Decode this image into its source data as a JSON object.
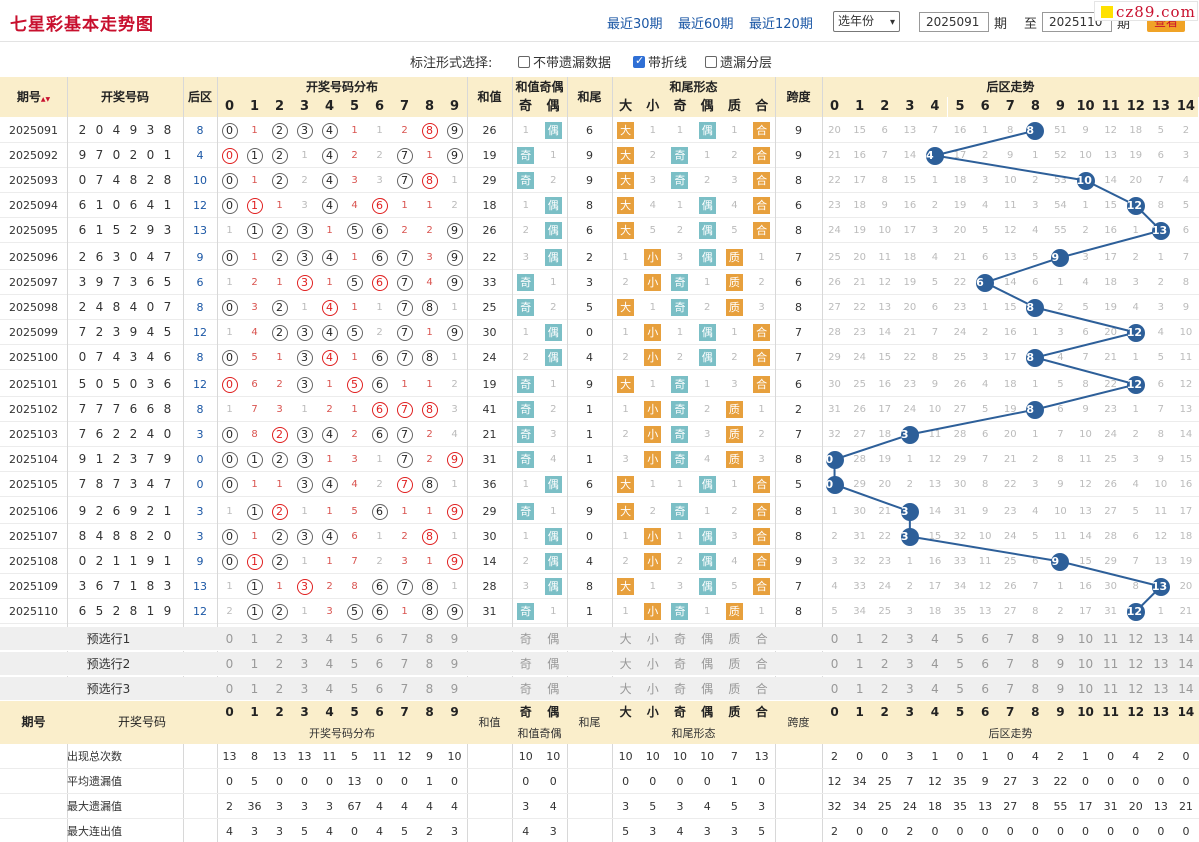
{
  "header": {
    "title": "七星彩基本走势图",
    "links": [
      "最近30期",
      "最近60期",
      "最近120期"
    ],
    "year_select": "选年份",
    "from_period": "2025091",
    "from_label": "期",
    "to_label": "至",
    "to_period": "2025110",
    "to_suffix": "期",
    "query": "查看",
    "watermark": "cz89.com"
  },
  "marker_options": {
    "label": "标注形式选择:",
    "options": [
      {
        "label": "不带遗漏数据",
        "checked": false
      },
      {
        "label": "带折线",
        "checked": true
      },
      {
        "label": "遗漏分层",
        "checked": false
      }
    ]
  },
  "columns": {
    "period": "期号",
    "draw": "开奖号码",
    "back": "后区",
    "dist": "开奖号码分布",
    "sum": "和值",
    "sum_parity": "和值奇偶",
    "odd": "奇",
    "even": "偶",
    "tail": "和尾",
    "tail_shape": "和尾形态",
    "big": "大",
    "small": "小",
    "prime": "质",
    "composite": "合",
    "span": "跨度",
    "back_trend": "后区走势",
    "sort_icon": "sort-icon"
  },
  "digits": [
    "0",
    "1",
    "2",
    "3",
    "4",
    "5",
    "6",
    "7",
    "8",
    "9"
  ],
  "back_digits": [
    "0",
    "1",
    "2",
    "3",
    "4",
    "5",
    "6",
    "7",
    "8",
    "9",
    "10",
    "11",
    "12",
    "13",
    "14"
  ],
  "rows": [
    {
      "p": "2025091",
      "d": [
        "2",
        "0",
        "4",
        "9",
        "3",
        "8"
      ],
      "b": "8",
      "dist": [
        "B0",
        "1",
        "B2",
        "B3",
        "B4",
        "1",
        "1",
        "2",
        "H8",
        "B9"
      ],
      "sum": "26",
      "par": [
        "1",
        "偶"
      ],
      "tail": "6",
      "shape": [
        "大",
        "1",
        "1",
        "偶",
        "1",
        "合"
      ],
      "span": "9",
      "trend": [
        "20",
        "15",
        "6",
        "13",
        "7",
        "16",
        "1",
        "8",
        "8",
        "51",
        "9",
        "12",
        "18",
        "5",
        "2"
      ]
    },
    {
      "p": "2025092",
      "d": [
        "9",
        "7",
        "0",
        "2",
        "0",
        "1"
      ],
      "b": "4",
      "dist": [
        "H0",
        "B1",
        "B2",
        "1",
        "B4",
        "2",
        "2",
        "B7",
        "1",
        "B9"
      ],
      "sum": "19",
      "par": [
        "奇",
        "1"
      ],
      "tail": "9",
      "shape": [
        "大",
        "2",
        "奇",
        "1",
        "2",
        "合"
      ],
      "span": "9",
      "trend": [
        "21",
        "16",
        "7",
        "14",
        "4",
        "17",
        "2",
        "9",
        "1",
        "52",
        "10",
        "13",
        "19",
        "6",
        "3"
      ]
    },
    {
      "p": "2025093",
      "d": [
        "0",
        "7",
        "4",
        "8",
        "2",
        "8"
      ],
      "b": "10",
      "dist": [
        "B0",
        "1",
        "B2",
        "2",
        "B4",
        "3",
        "3",
        "B7",
        "H8",
        "1"
      ],
      "sum": "29",
      "par": [
        "奇",
        "2"
      ],
      "tail": "9",
      "shape": [
        "大",
        "3",
        "奇",
        "2",
        "3",
        "合"
      ],
      "span": "8",
      "trend": [
        "22",
        "17",
        "8",
        "15",
        "1",
        "18",
        "3",
        "10",
        "2",
        "53",
        "10",
        "14",
        "20",
        "7",
        "4"
      ]
    },
    {
      "p": "2025094",
      "d": [
        "6",
        "1",
        "0",
        "6",
        "4",
        "1"
      ],
      "b": "12",
      "dist": [
        "B0",
        "H1",
        "1",
        "3",
        "B4",
        "4",
        "H6",
        "1",
        "1",
        "2"
      ],
      "sum": "18",
      "par": [
        "1",
        "偶"
      ],
      "tail": "8",
      "shape": [
        "大",
        "4",
        "1",
        "偶",
        "4",
        "合"
      ],
      "span": "6",
      "trend": [
        "23",
        "18",
        "9",
        "16",
        "2",
        "19",
        "4",
        "11",
        "3",
        "54",
        "1",
        "15",
        "12",
        "8",
        "5"
      ]
    },
    {
      "p": "2025095",
      "d": [
        "6",
        "1",
        "5",
        "2",
        "9",
        "3"
      ],
      "b": "13",
      "dist": [
        "1",
        "B1",
        "B2",
        "B3",
        "1",
        "B5",
        "B6",
        "2",
        "2",
        "B9"
      ],
      "sum": "26",
      "par": [
        "2",
        "偶"
      ],
      "tail": "6",
      "shape": [
        "大",
        "5",
        "2",
        "偶",
        "5",
        "合"
      ],
      "span": "8",
      "trend": [
        "24",
        "19",
        "10",
        "17",
        "3",
        "20",
        "5",
        "12",
        "4",
        "55",
        "2",
        "16",
        "1",
        "13",
        "6"
      ]
    },
    {
      "p": "2025096",
      "d": [
        "2",
        "6",
        "3",
        "0",
        "4",
        "7"
      ],
      "b": "9",
      "dist": [
        "B0",
        "1",
        "B2",
        "B3",
        "B4",
        "1",
        "B6",
        "B7",
        "3",
        "B9"
      ],
      "sum": "22",
      "par": [
        "3",
        "偶"
      ],
      "tail": "2",
      "shape": [
        "1",
        "小",
        "3",
        "偶",
        "质",
        "1"
      ],
      "span": "7",
      "trend": [
        "25",
        "20",
        "11",
        "18",
        "4",
        "21",
        "6",
        "13",
        "5",
        "9",
        "3",
        "17",
        "2",
        "1",
        "7"
      ]
    },
    {
      "p": "2025097",
      "d": [
        "3",
        "9",
        "7",
        "3",
        "6",
        "5"
      ],
      "b": "6",
      "dist": [
        "1",
        "2",
        "1",
        "H3",
        "1",
        "B5",
        "H6",
        "B7",
        "4",
        "B9"
      ],
      "sum": "33",
      "par": [
        "奇",
        "1"
      ],
      "tail": "3",
      "shape": [
        "2",
        "小",
        "奇",
        "1",
        "质",
        "2"
      ],
      "span": "6",
      "trend": [
        "26",
        "21",
        "12",
        "19",
        "5",
        "22",
        "6",
        "14",
        "6",
        "1",
        "4",
        "18",
        "3",
        "2",
        "8"
      ]
    },
    {
      "p": "2025098",
      "d": [
        "2",
        "4",
        "8",
        "4",
        "0",
        "7"
      ],
      "b": "8",
      "dist": [
        "B0",
        "3",
        "B2",
        "1",
        "H4",
        "1",
        "1",
        "B7",
        "B8",
        "1"
      ],
      "sum": "25",
      "par": [
        "奇",
        "2"
      ],
      "tail": "5",
      "shape": [
        "大",
        "1",
        "奇",
        "2",
        "质",
        "3"
      ],
      "span": "8",
      "trend": [
        "27",
        "22",
        "13",
        "20",
        "6",
        "23",
        "1",
        "15",
        "8",
        "2",
        "5",
        "19",
        "4",
        "3",
        "9"
      ]
    },
    {
      "p": "2025099",
      "d": [
        "7",
        "2",
        "3",
        "9",
        "4",
        "5"
      ],
      "b": "12",
      "dist": [
        "1",
        "4",
        "B2",
        "B3",
        "B4",
        "B5",
        "2",
        "B7",
        "1",
        "B9"
      ],
      "sum": "30",
      "par": [
        "1",
        "偶"
      ],
      "tail": "0",
      "shape": [
        "1",
        "小",
        "1",
        "偶",
        "1",
        "合"
      ],
      "span": "7",
      "trend": [
        "28",
        "23",
        "14",
        "21",
        "7",
        "24",
        "2",
        "16",
        "1",
        "3",
        "6",
        "20",
        "12",
        "4",
        "10"
      ]
    },
    {
      "p": "2025100",
      "d": [
        "0",
        "7",
        "4",
        "3",
        "4",
        "6"
      ],
      "b": "8",
      "dist": [
        "B0",
        "5",
        "1",
        "B3",
        "H4",
        "1",
        "B6",
        "B7",
        "B8",
        "1"
      ],
      "sum": "24",
      "par": [
        "2",
        "偶"
      ],
      "tail": "4",
      "shape": [
        "2",
        "小",
        "2",
        "偶",
        "2",
        "合"
      ],
      "span": "7",
      "trend": [
        "29",
        "24",
        "15",
        "22",
        "8",
        "25",
        "3",
        "17",
        "8",
        "4",
        "7",
        "21",
        "1",
        "5",
        "11"
      ]
    },
    {
      "p": "2025101",
      "d": [
        "5",
        "0",
        "5",
        "0",
        "3",
        "6"
      ],
      "b": "12",
      "dist": [
        "H0",
        "6",
        "2",
        "B3",
        "1",
        "H5",
        "B6",
        "1",
        "1",
        "2"
      ],
      "sum": "19",
      "par": [
        "奇",
        "1"
      ],
      "tail": "9",
      "shape": [
        "大",
        "1",
        "奇",
        "1",
        "3",
        "合"
      ],
      "span": "6",
      "trend": [
        "30",
        "25",
        "16",
        "23",
        "9",
        "26",
        "4",
        "18",
        "1",
        "5",
        "8",
        "22",
        "12",
        "6",
        "12"
      ]
    },
    {
      "p": "2025102",
      "d": [
        "7",
        "7",
        "7",
        "6",
        "6",
        "8"
      ],
      "b": "8",
      "dist": [
        "1",
        "7",
        "3",
        "1",
        "2",
        "1",
        "H6",
        "H7",
        "H8",
        "3"
      ],
      "sum": "41",
      "par": [
        "奇",
        "2"
      ],
      "tail": "1",
      "shape": [
        "1",
        "小",
        "奇",
        "2",
        "质",
        "1"
      ],
      "span": "2",
      "trend": [
        "31",
        "26",
        "17",
        "24",
        "10",
        "27",
        "5",
        "19",
        "8",
        "6",
        "9",
        "23",
        "1",
        "7",
        "13"
      ]
    },
    {
      "p": "2025103",
      "d": [
        "7",
        "6",
        "2",
        "2",
        "4",
        "0"
      ],
      "b": "3",
      "dist": [
        "B0",
        "8",
        "H2",
        "B3",
        "B4",
        "2",
        "B6",
        "B7",
        "2",
        "4"
      ],
      "sum": "21",
      "par": [
        "奇",
        "3"
      ],
      "tail": "1",
      "shape": [
        "2",
        "小",
        "奇",
        "3",
        "质",
        "2"
      ],
      "span": "7",
      "trend": [
        "32",
        "27",
        "18",
        "3",
        "11",
        "28",
        "6",
        "20",
        "1",
        "7",
        "10",
        "24",
        "2",
        "8",
        "14"
      ]
    },
    {
      "p": "2025104",
      "d": [
        "9",
        "1",
        "2",
        "3",
        "7",
        "9"
      ],
      "b": "0",
      "dist": [
        "B0",
        "B1",
        "B2",
        "B3",
        "1",
        "3",
        "1",
        "B7",
        "2",
        "H9"
      ],
      "sum": "31",
      "par": [
        "奇",
        "4"
      ],
      "tail": "1",
      "shape": [
        "3",
        "小",
        "奇",
        "4",
        "质",
        "3"
      ],
      "span": "8",
      "trend": [
        "0",
        "28",
        "19",
        "1",
        "12",
        "29",
        "7",
        "21",
        "2",
        "8",
        "11",
        "25",
        "3",
        "9",
        "15"
      ]
    },
    {
      "p": "2025105",
      "d": [
        "7",
        "8",
        "7",
        "3",
        "4",
        "7"
      ],
      "b": "0",
      "dist": [
        "B0",
        "1",
        "1",
        "B3",
        "B4",
        "4",
        "2",
        "H7",
        "B8",
        "1"
      ],
      "sum": "36",
      "par": [
        "1",
        "偶"
      ],
      "tail": "6",
      "shape": [
        "大",
        "1",
        "1",
        "偶",
        "1",
        "合"
      ],
      "span": "5",
      "trend": [
        "0",
        "29",
        "20",
        "2",
        "13",
        "30",
        "8",
        "22",
        "3",
        "9",
        "12",
        "26",
        "4",
        "10",
        "16"
      ]
    },
    {
      "p": "2025106",
      "d": [
        "9",
        "2",
        "6",
        "9",
        "2",
        "1"
      ],
      "b": "3",
      "dist": [
        "1",
        "B1",
        "H2",
        "1",
        "1",
        "5",
        "B6",
        "1",
        "1",
        "H9"
      ],
      "sum": "29",
      "par": [
        "奇",
        "1"
      ],
      "tail": "9",
      "shape": [
        "大",
        "2",
        "奇",
        "1",
        "2",
        "合"
      ],
      "span": "8",
      "trend": [
        "1",
        "30",
        "21",
        "3",
        "14",
        "31",
        "9",
        "23",
        "4",
        "10",
        "13",
        "27",
        "5",
        "11",
        "17"
      ]
    },
    {
      "p": "2025107",
      "d": [
        "8",
        "4",
        "8",
        "8",
        "2",
        "0"
      ],
      "b": "3",
      "dist": [
        "B0",
        "1",
        "B2",
        "B3",
        "B4",
        "6",
        "1",
        "2",
        "H8",
        "1"
      ],
      "sum": "30",
      "par": [
        "1",
        "偶"
      ],
      "tail": "0",
      "shape": [
        "1",
        "小",
        "1",
        "偶",
        "3",
        "合"
      ],
      "span": "8",
      "trend": [
        "2",
        "31",
        "22",
        "3",
        "15",
        "32",
        "10",
        "24",
        "5",
        "11",
        "14",
        "28",
        "6",
        "12",
        "18"
      ]
    },
    {
      "p": "2025108",
      "d": [
        "0",
        "2",
        "1",
        "1",
        "9",
        "1"
      ],
      "b": "9",
      "dist": [
        "B0",
        "H1",
        "B2",
        "1",
        "1",
        "7",
        "2",
        "3",
        "1",
        "H9"
      ],
      "sum": "14",
      "par": [
        "2",
        "偶"
      ],
      "tail": "4",
      "shape": [
        "2",
        "小",
        "2",
        "偶",
        "4",
        "合"
      ],
      "span": "9",
      "trend": [
        "3",
        "32",
        "23",
        "1",
        "16",
        "33",
        "11",
        "25",
        "6",
        "9",
        "15",
        "29",
        "7",
        "13",
        "19"
      ]
    },
    {
      "p": "2025109",
      "d": [
        "3",
        "6",
        "7",
        "1",
        "8",
        "3"
      ],
      "b": "13",
      "dist": [
        "1",
        "B1",
        "1",
        "H3",
        "2",
        "8",
        "B6",
        "B7",
        "B8",
        "1"
      ],
      "sum": "28",
      "par": [
        "3",
        "偶"
      ],
      "tail": "8",
      "shape": [
        "大",
        "1",
        "3",
        "偶",
        "5",
        "合"
      ],
      "span": "7",
      "trend": [
        "4",
        "33",
        "24",
        "2",
        "17",
        "34",
        "12",
        "26",
        "7",
        "1",
        "16",
        "30",
        "8",
        "13",
        "20"
      ]
    },
    {
      "p": "2025110",
      "d": [
        "6",
        "5",
        "2",
        "8",
        "1",
        "9"
      ],
      "b": "12",
      "dist": [
        "2",
        "B1",
        "B2",
        "1",
        "3",
        "B5",
        "B6",
        "1",
        "B8",
        "B9"
      ],
      "sum": "31",
      "par": [
        "奇",
        "1"
      ],
      "tail": "1",
      "shape": [
        "1",
        "小",
        "奇",
        "1",
        "质",
        "1"
      ],
      "span": "8",
      "trend": [
        "5",
        "34",
        "25",
        "3",
        "18",
        "35",
        "13",
        "27",
        "8",
        "2",
        "17",
        "31",
        "12",
        "1",
        "21"
      ]
    }
  ],
  "preselect": [
    "预选行1",
    "预选行2",
    "预选行3"
  ],
  "stats": [
    {
      "label": "出现总次数",
      "dist": [
        "13",
        "8",
        "13",
        "13",
        "11",
        "5",
        "11",
        "12",
        "9",
        "10"
      ],
      "par": [
        "10",
        "10"
      ],
      "shape": [
        "10",
        "10",
        "10",
        "10",
        "7",
        "13"
      ],
      "back": [
        "2",
        "0",
        "0",
        "3",
        "1",
        "0",
        "1",
        "0",
        "4",
        "2",
        "1",
        "0",
        "4",
        "2",
        "0"
      ]
    },
    {
      "label": "平均遗漏值",
      "dist": [
        "0",
        "5",
        "0",
        "0",
        "0",
        "13",
        "0",
        "0",
        "1",
        "0"
      ],
      "par": [
        "0",
        "0"
      ],
      "shape": [
        "0",
        "0",
        "0",
        "0",
        "1",
        "0"
      ],
      "back": [
        "12",
        "34",
        "25",
        "7",
        "12",
        "35",
        "9",
        "27",
        "3",
        "22",
        "0",
        "0",
        "0",
        "0",
        "0"
      ]
    },
    {
      "label": "最大遗漏值",
      "dist": [
        "2",
        "36",
        "3",
        "3",
        "3",
        "67",
        "4",
        "4",
        "4",
        "4"
      ],
      "par": [
        "3",
        "4"
      ],
      "shape": [
        "3",
        "5",
        "3",
        "4",
        "5",
        "3"
      ],
      "back": [
        "32",
        "34",
        "25",
        "24",
        "18",
        "35",
        "13",
        "27",
        "8",
        "55",
        "17",
        "31",
        "20",
        "13",
        "21"
      ]
    },
    {
      "label": "最大连出值",
      "dist": [
        "4",
        "3",
        "3",
        "5",
        "4",
        "0",
        "4",
        "5",
        "2",
        "3"
      ],
      "par": [
        "4",
        "3"
      ],
      "shape": [
        "5",
        "3",
        "4",
        "3",
        "3",
        "5"
      ],
      "back": [
        "2",
        "0",
        "0",
        "2",
        "0",
        "0",
        "0",
        "0",
        "0",
        "0",
        "0",
        "0",
        "0",
        "0",
        "0"
      ]
    }
  ],
  "colors": {
    "accent": "#c8102e",
    "link": "#1b57a5",
    "header_bg": "#faeecb",
    "trend_line": "#2d5f99",
    "odd_tag": "#7bbfc6",
    "even_tag": "#e7a03d"
  }
}
